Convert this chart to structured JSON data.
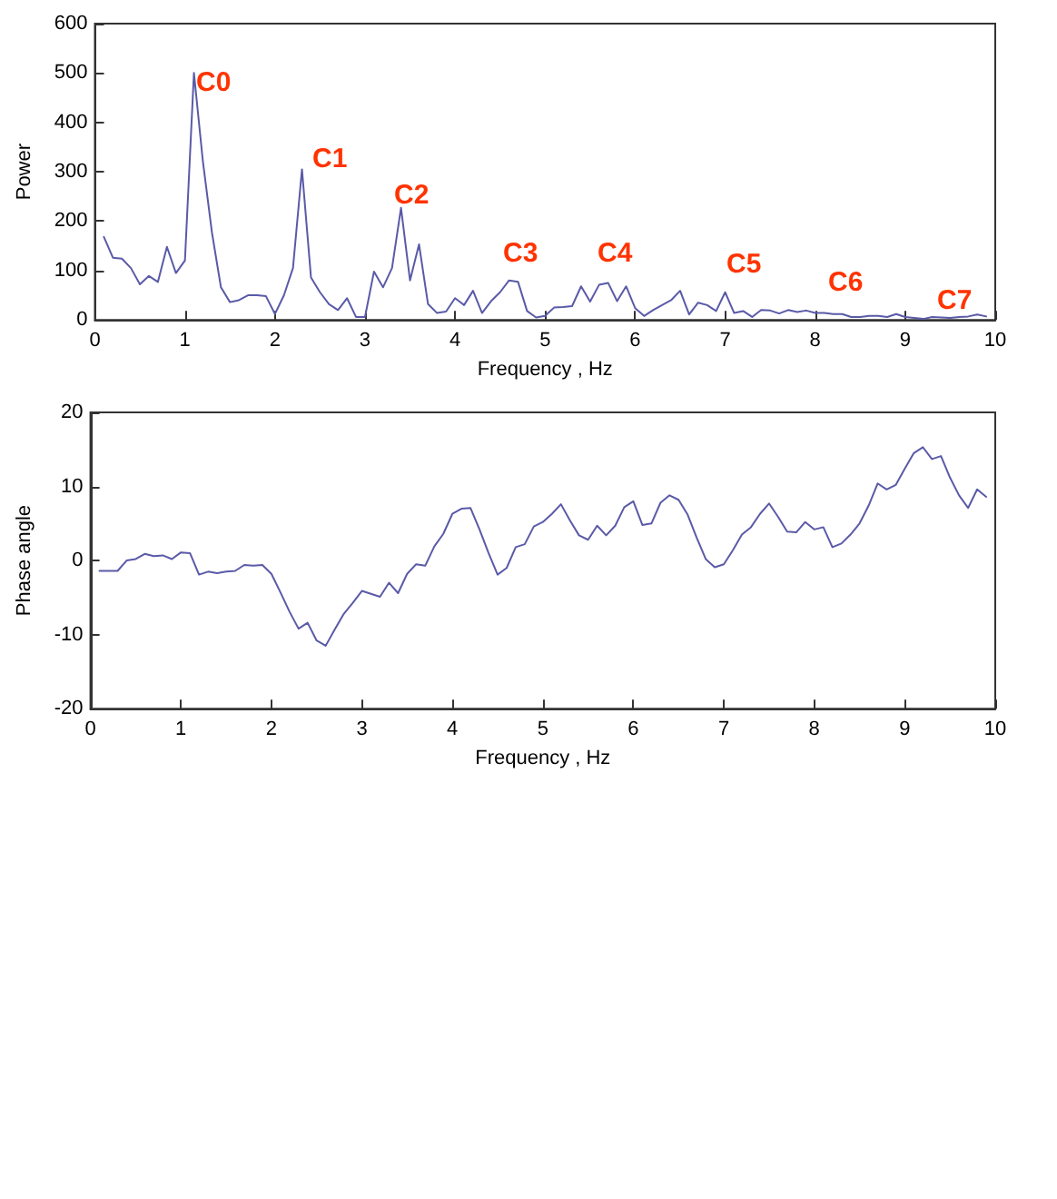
{
  "chart_data": [
    {
      "type": "line",
      "xlabel": "Frequency , Hz",
      "ylabel": "Power",
      "grid": false,
      "marker": "none",
      "line_style": "solid",
      "x": [
        0.1,
        0.2,
        0.3,
        0.4,
        0.5,
        0.6,
        0.7,
        0.8,
        0.9,
        1.0,
        1.1,
        1.2,
        1.3,
        1.4,
        1.5,
        1.6,
        1.7,
        1.8,
        1.9,
        2.0,
        2.1,
        2.2,
        2.3,
        2.4,
        2.5,
        2.6,
        2.7,
        2.8,
        2.9,
        3.0,
        3.1,
        3.2,
        3.3,
        3.4,
        3.5,
        3.6,
        3.7,
        3.8,
        3.9,
        4.0,
        4.1,
        4.2,
        4.3,
        4.4,
        4.5,
        4.6,
        4.7,
        4.8,
        4.9,
        5.0,
        5.1,
        5.2,
        5.3,
        5.4,
        5.5,
        5.6,
        5.7,
        5.8,
        5.9,
        6.0,
        6.1,
        6.2,
        6.3,
        6.4,
        6.5,
        6.6,
        6.7,
        6.8,
        6.9,
        7.0,
        7.1,
        7.2,
        7.3,
        7.4,
        7.5,
        7.6,
        7.7,
        7.8,
        7.9,
        8.0,
        8.1,
        8.2,
        8.3,
        8.4,
        8.5,
        8.6,
        8.7,
        8.8,
        8.9,
        9.0,
        9.1,
        9.2,
        9.3,
        9.4,
        9.5,
        9.6,
        9.7,
        9.8,
        9.9
      ],
      "series": [
        {
          "color": "#5a5aa8",
          "values": [
            168,
            126,
            124,
            105,
            72,
            89,
            77,
            148,
            95,
            120,
            500,
            320,
            177,
            66,
            36,
            40,
            50,
            50,
            48,
            12,
            50,
            105,
            305,
            86,
            56,
            32,
            20,
            44,
            6,
            6,
            98,
            66,
            105,
            227,
            80,
            153,
            32,
            14,
            17,
            44,
            30,
            59,
            14,
            38,
            56,
            80,
            77,
            18,
            5,
            8,
            25,
            26,
            28,
            68,
            37,
            71,
            75,
            38,
            68,
            24,
            8,
            20,
            30,
            40,
            59,
            11,
            35,
            30,
            18,
            56,
            14,
            18,
            6,
            20,
            19,
            13,
            20,
            16,
            19,
            14,
            14,
            12,
            12,
            6,
            6,
            8,
            8,
            6,
            12,
            6,
            4,
            2,
            6,
            5,
            4,
            6,
            7,
            11,
            7
          ]
        }
      ],
      "xlim": [
        0,
        10
      ],
      "xticks": [
        0,
        1,
        2,
        3,
        4,
        5,
        6,
        7,
        8,
        9,
        10
      ],
      "ylim": [
        0,
        600
      ],
      "yticks": [
        0,
        100,
        200,
        300,
        400,
        500,
        600
      ],
      "annotations": [
        "C0",
        "C1",
        "C2",
        "C3",
        "C4",
        "C5",
        "C6",
        "C7"
      ]
    },
    {
      "type": "line",
      "xlabel": "Frequency , Hz",
      "ylabel": "Phase angle",
      "grid": false,
      "marker": "none",
      "line_style": "solid",
      "x": [
        0.1,
        0.2,
        0.3,
        0.4,
        0.5,
        0.6,
        0.7,
        0.8,
        0.9,
        1.0,
        1.1,
        1.2,
        1.3,
        1.4,
        1.5,
        1.6,
        1.7,
        1.8,
        1.9,
        2.0,
        2.1,
        2.2,
        2.3,
        2.4,
        2.5,
        2.6,
        2.7,
        2.8,
        2.9,
        3.0,
        3.1,
        3.2,
        3.3,
        3.4,
        3.5,
        3.6,
        3.7,
        3.8,
        3.9,
        4.0,
        4.1,
        4.2,
        4.3,
        4.4,
        4.5,
        4.6,
        4.7,
        4.8,
        4.9,
        5.0,
        5.1,
        5.2,
        5.3,
        5.4,
        5.5,
        5.6,
        5.7,
        5.8,
        5.9,
        6.0,
        6.1,
        6.2,
        6.3,
        6.4,
        6.5,
        6.6,
        6.7,
        6.8,
        6.9,
        7.0,
        7.1,
        7.2,
        7.3,
        7.4,
        7.5,
        7.6,
        7.7,
        7.8,
        7.9,
        8.0,
        8.1,
        8.2,
        8.3,
        8.4,
        8.5,
        8.6,
        8.7,
        8.8,
        8.9,
        9.0,
        9.1,
        9.2,
        9.3,
        9.4,
        9.5,
        9.6,
        9.7,
        9.8,
        9.9
      ],
      "series": [
        {
          "color": "#5a5aa8",
          "values": [
            -1.4,
            -1.4,
            -1.4,
            0,
            0.2,
            0.9,
            0.6,
            0.7,
            0.2,
            1.1,
            1.0,
            -1.9,
            -1.5,
            -1.7,
            -1.5,
            -1.4,
            -0.6,
            -0.7,
            -0.6,
            -1.8,
            -4.3,
            -6.9,
            -9.2,
            -8.4,
            -10.8,
            -11.5,
            -9.3,
            -7.2,
            -5.7,
            -4.1,
            -4.5,
            -4.9,
            -3.0,
            -4.4,
            -1.8,
            -0.5,
            -0.7,
            1.9,
            3.6,
            6.3,
            7.0,
            7.1,
            4.2,
            1.0,
            -1.9,
            -1.0,
            1.8,
            2.2,
            4.6,
            5.2,
            6.3,
            7.6,
            5.4,
            3.4,
            2.8,
            4.7,
            3.4,
            4.7,
            7.2,
            8.0,
            4.8,
            5.0,
            7.8,
            8.8,
            8.2,
            6.2,
            3.1,
            0.2,
            -0.9,
            -0.5,
            1.4,
            3.5,
            4.5,
            6.3,
            7.7,
            5.9,
            3.9,
            3.8,
            5.2,
            4.2,
            4.5,
            1.8,
            2.3,
            3.5,
            5.0,
            7.4,
            10.4,
            9.6,
            10.2,
            12.4,
            14.5,
            15.3,
            13.7,
            14.1,
            11.2,
            8.8,
            7.1,
            9.6,
            8.6
          ]
        }
      ],
      "xlim": [
        0,
        10
      ],
      "xticks": [
        0,
        1,
        2,
        3,
        4,
        5,
        6,
        7,
        8,
        9,
        10
      ],
      "ylim": [
        -20,
        20
      ],
      "yticks": [
        -20,
        -10,
        0,
        10,
        20
      ]
    }
  ]
}
